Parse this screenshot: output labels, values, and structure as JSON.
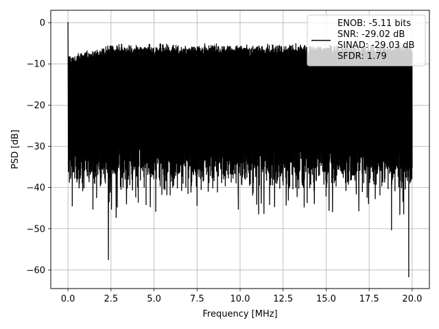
{
  "chart_data": {
    "type": "line",
    "xlabel": "Frequency [MHz]",
    "ylabel": "PSD [dB]",
    "xlim": [
      -1.0,
      21.0
    ],
    "ylim": [
      -64.5,
      3.0
    ],
    "xticks": [
      0.0,
      2.5,
      5.0,
      7.5,
      10.0,
      12.5,
      15.0,
      17.5,
      20.0
    ],
    "xtick_labels": [
      "0.0",
      "2.5",
      "5.0",
      "7.5",
      "10.0",
      "12.5",
      "15.0",
      "17.5",
      "20.0"
    ],
    "yticks": [
      0,
      -10,
      -20,
      -30,
      -40,
      -50,
      -60
    ],
    "ytick_labels": [
      "0",
      "−10",
      "−20",
      "−30",
      "−40",
      "−50",
      "−60"
    ],
    "grid": true,
    "legend_position": "top-right",
    "series": [
      {
        "name": "ENOB: -5.11 bits\nSNR: -29.02 dB\nSINAD: -29.03 dB\nSFDR: 1.79",
        "legend_lines": [
          "ENOB: -5.11 bits",
          "SNR: -29.02 dB",
          "SINAD: -29.03 dB",
          "SFDR: 1.79"
        ],
        "color": "#000000",
        "x_range": [
          0.0,
          20.0
        ],
        "peak": {
          "x": 0.0,
          "y": 0.0
        },
        "envelope_top_range": [
          -10,
          -5
        ],
        "envelope_bottom_range": [
          -35,
          -28
        ],
        "notable_dips": [
          {
            "x": 0.25,
            "y": -44.4
          },
          {
            "x": 1.45,
            "y": -45.2
          },
          {
            "x": 2.35,
            "y": -57.4
          },
          {
            "x": 2.8,
            "y": -47.2
          },
          {
            "x": 5.1,
            "y": -45.7
          },
          {
            "x": 7.5,
            "y": -44.3
          },
          {
            "x": 9.9,
            "y": -45.2
          },
          {
            "x": 13.9,
            "y": -43.6
          },
          {
            "x": 16.9,
            "y": -45.6
          },
          {
            "x": 18.8,
            "y": -50.2
          },
          {
            "x": 19.8,
            "y": -61.6
          }
        ]
      }
    ]
  }
}
